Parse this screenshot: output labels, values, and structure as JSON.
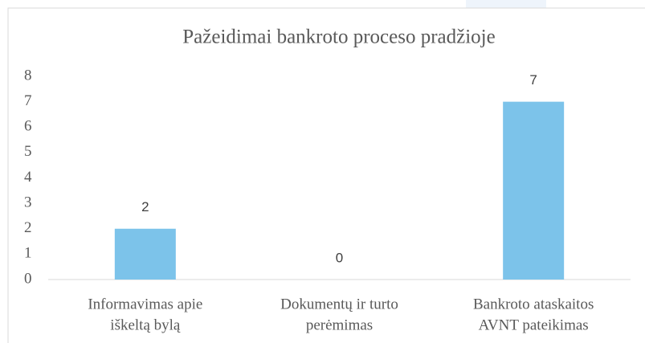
{
  "chart_data": {
    "type": "bar",
    "title": "Pažeidimai bankroto proceso pradžioje",
    "categories": [
      [
        "Informavimas apie",
        "iškeltą bylą"
      ],
      [
        "Dokumentų ir turto",
        "perėmimas"
      ],
      [
        "Bankroto ataskaitos",
        "AVNT pateikimas"
      ]
    ],
    "values": [
      2,
      0,
      7
    ],
    "color": "#7cc3ea",
    "ylim": [
      0,
      8
    ],
    "yticks": [
      0,
      1,
      2,
      3,
      4,
      5,
      6,
      7,
      8
    ],
    "grid": false
  }
}
